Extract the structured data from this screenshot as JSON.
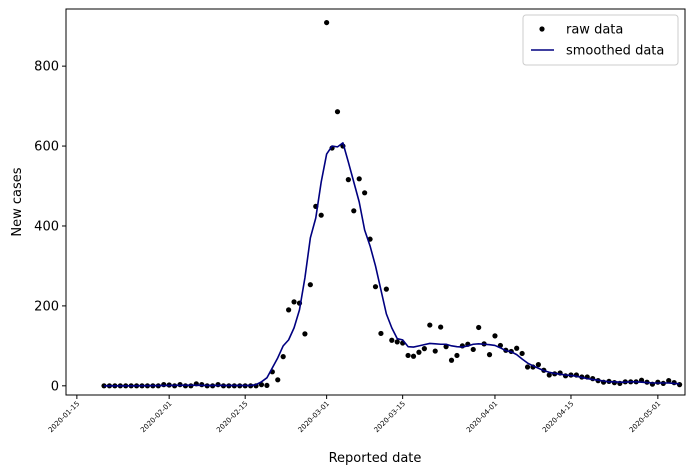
{
  "chart_data": {
    "type": "scatter",
    "xlabel": "Reported date",
    "ylabel": "New cases",
    "xlim": [
      "2020-01-13",
      "2020-05-06"
    ],
    "ylim": [
      -23,
      943
    ],
    "yticks": [
      0,
      200,
      400,
      600,
      800
    ],
    "xticks": [
      "2020-01-15",
      "2020-02-01",
      "2020-02-15",
      "2020-03-01",
      "2020-03-15",
      "2020-04-01",
      "2020-04-15",
      "2020-05-01"
    ],
    "grid": false,
    "legend": {
      "placement": "top-right",
      "entries": [
        "raw data",
        "smoothed data"
      ]
    },
    "colors": {
      "raw": "#000000",
      "smoothed": "#000080"
    },
    "series": [
      {
        "name": "raw data",
        "kind": "scatter",
        "points": [
          [
            "2020-01-20",
            0
          ],
          [
            "2020-01-21",
            0
          ],
          [
            "2020-01-22",
            0
          ],
          [
            "2020-01-23",
            0
          ],
          [
            "2020-01-24",
            0
          ],
          [
            "2020-01-25",
            0
          ],
          [
            "2020-01-26",
            0
          ],
          [
            "2020-01-27",
            0
          ],
          [
            "2020-01-28",
            0
          ],
          [
            "2020-01-29",
            0
          ],
          [
            "2020-01-30",
            0
          ],
          [
            "2020-01-31",
            3
          ],
          [
            "2020-02-01",
            2
          ],
          [
            "2020-02-02",
            0
          ],
          [
            "2020-02-03",
            3
          ],
          [
            "2020-02-04",
            0
          ],
          [
            "2020-02-05",
            0
          ],
          [
            "2020-02-06",
            5
          ],
          [
            "2020-02-07",
            3
          ],
          [
            "2020-02-08",
            0
          ],
          [
            "2020-02-09",
            0
          ],
          [
            "2020-02-10",
            3
          ],
          [
            "2020-02-11",
            0
          ],
          [
            "2020-02-12",
            0
          ],
          [
            "2020-02-13",
            0
          ],
          [
            "2020-02-14",
            0
          ],
          [
            "2020-02-15",
            0
          ],
          [
            "2020-02-16",
            0
          ],
          [
            "2020-02-17",
            0
          ],
          [
            "2020-02-18",
            3
          ],
          [
            "2020-02-19",
            1
          ],
          [
            "2020-02-20",
            35
          ],
          [
            "2020-02-21",
            15
          ],
          [
            "2020-02-22",
            73
          ],
          [
            "2020-02-23",
            190
          ],
          [
            "2020-02-24",
            210
          ],
          [
            "2020-02-25",
            207
          ],
          [
            "2020-02-26",
            130
          ],
          [
            "2020-02-27",
            253
          ],
          [
            "2020-02-28",
            449
          ],
          [
            "2020-02-29",
            427
          ],
          [
            "2020-03-01",
            909
          ],
          [
            "2020-03-02",
            595
          ],
          [
            "2020-03-03",
            686
          ],
          [
            "2020-03-04",
            600
          ],
          [
            "2020-03-05",
            516
          ],
          [
            "2020-03-06",
            438
          ],
          [
            "2020-03-07",
            518
          ],
          [
            "2020-03-08",
            483
          ],
          [
            "2020-03-09",
            367
          ],
          [
            "2020-03-10",
            248
          ],
          [
            "2020-03-11",
            131
          ],
          [
            "2020-03-12",
            242
          ],
          [
            "2020-03-13",
            114
          ],
          [
            "2020-03-14",
            110
          ],
          [
            "2020-03-15",
            107
          ],
          [
            "2020-03-16",
            76
          ],
          [
            "2020-03-17",
            74
          ],
          [
            "2020-03-18",
            84
          ],
          [
            "2020-03-19",
            93
          ],
          [
            "2020-03-20",
            152
          ],
          [
            "2020-03-21",
            87
          ],
          [
            "2020-03-22",
            147
          ],
          [
            "2020-03-23",
            98
          ],
          [
            "2020-03-24",
            64
          ],
          [
            "2020-03-25",
            76
          ],
          [
            "2020-03-26",
            100
          ],
          [
            "2020-03-27",
            104
          ],
          [
            "2020-03-28",
            91
          ],
          [
            "2020-03-29",
            146
          ],
          [
            "2020-03-30",
            105
          ],
          [
            "2020-03-31",
            78
          ],
          [
            "2020-04-01",
            125
          ],
          [
            "2020-04-02",
            101
          ],
          [
            "2020-04-03",
            89
          ],
          [
            "2020-04-04",
            86
          ],
          [
            "2020-04-05",
            94
          ],
          [
            "2020-04-06",
            81
          ],
          [
            "2020-04-07",
            47
          ],
          [
            "2020-04-08",
            47
          ],
          [
            "2020-04-09",
            53
          ],
          [
            "2020-04-10",
            39
          ],
          [
            "2020-04-11",
            27
          ],
          [
            "2020-04-12",
            30
          ],
          [
            "2020-04-13",
            32
          ],
          [
            "2020-04-14",
            25
          ],
          [
            "2020-04-15",
            27
          ],
          [
            "2020-04-16",
            27
          ],
          [
            "2020-04-17",
            22
          ],
          [
            "2020-04-18",
            22
          ],
          [
            "2020-04-19",
            18
          ],
          [
            "2020-04-20",
            13
          ],
          [
            "2020-04-21",
            9
          ],
          [
            "2020-04-22",
            11
          ],
          [
            "2020-04-23",
            8
          ],
          [
            "2020-04-24",
            6
          ],
          [
            "2020-04-25",
            10
          ],
          [
            "2020-04-26",
            10
          ],
          [
            "2020-04-27",
            10
          ],
          [
            "2020-04-28",
            14
          ],
          [
            "2020-04-29",
            9
          ],
          [
            "2020-04-30",
            4
          ],
          [
            "2020-05-01",
            9
          ],
          [
            "2020-05-02",
            6
          ],
          [
            "2020-05-03",
            13
          ],
          [
            "2020-05-04",
            8
          ],
          [
            "2020-05-05",
            3
          ]
        ]
      },
      {
        "name": "smoothed data",
        "kind": "line",
        "points": [
          [
            "2020-01-20",
            0
          ],
          [
            "2020-01-25",
            0
          ],
          [
            "2020-01-30",
            0.5
          ],
          [
            "2020-02-01",
            1
          ],
          [
            "2020-02-05",
            1.5
          ],
          [
            "2020-02-08",
            1
          ],
          [
            "2020-02-12",
            1
          ],
          [
            "2020-02-15",
            1
          ],
          [
            "2020-02-16",
            1
          ],
          [
            "2020-02-17",
            3
          ],
          [
            "2020-02-18",
            10
          ],
          [
            "2020-02-19",
            20
          ],
          [
            "2020-02-20",
            45
          ],
          [
            "2020-02-21",
            70
          ],
          [
            "2020-02-22",
            100
          ],
          [
            "2020-02-23",
            115
          ],
          [
            "2020-02-24",
            145
          ],
          [
            "2020-02-25",
            190
          ],
          [
            "2020-02-26",
            270
          ],
          [
            "2020-02-27",
            370
          ],
          [
            "2020-02-28",
            420
          ],
          [
            "2020-02-29",
            510
          ],
          [
            "2020-03-01",
            580
          ],
          [
            "2020-03-02",
            600
          ],
          [
            "2020-03-03",
            598
          ],
          [
            "2020-03-04",
            608
          ],
          [
            "2020-03-05",
            560
          ],
          [
            "2020-03-06",
            510
          ],
          [
            "2020-03-07",
            460
          ],
          [
            "2020-03-08",
            390
          ],
          [
            "2020-03-09",
            350
          ],
          [
            "2020-03-10",
            300
          ],
          [
            "2020-03-11",
            240
          ],
          [
            "2020-03-12",
            180
          ],
          [
            "2020-03-13",
            145
          ],
          [
            "2020-03-14",
            118
          ],
          [
            "2020-03-15",
            115
          ],
          [
            "2020-03-16",
            98
          ],
          [
            "2020-03-17",
            97
          ],
          [
            "2020-03-18",
            100
          ],
          [
            "2020-03-19",
            103
          ],
          [
            "2020-03-20",
            106
          ],
          [
            "2020-03-21",
            105
          ],
          [
            "2020-03-22",
            104
          ],
          [
            "2020-03-23",
            104
          ],
          [
            "2020-03-24",
            100
          ],
          [
            "2020-03-25",
            98
          ],
          [
            "2020-03-26",
            97
          ],
          [
            "2020-03-27",
            100
          ],
          [
            "2020-03-28",
            104
          ],
          [
            "2020-03-29",
            105
          ],
          [
            "2020-03-30",
            104
          ],
          [
            "2020-03-31",
            103
          ],
          [
            "2020-04-01",
            101
          ],
          [
            "2020-04-02",
            95
          ],
          [
            "2020-04-03",
            88
          ],
          [
            "2020-04-04",
            85
          ],
          [
            "2020-04-05",
            78
          ],
          [
            "2020-04-06",
            67
          ],
          [
            "2020-04-07",
            57
          ],
          [
            "2020-04-08",
            50
          ],
          [
            "2020-04-09",
            44
          ],
          [
            "2020-04-10",
            38
          ],
          [
            "2020-04-11",
            34
          ],
          [
            "2020-04-12",
            31
          ],
          [
            "2020-04-13",
            29
          ],
          [
            "2020-04-14",
            27
          ],
          [
            "2020-04-15",
            26
          ],
          [
            "2020-04-16",
            24
          ],
          [
            "2020-04-17",
            21
          ],
          [
            "2020-04-18",
            18
          ],
          [
            "2020-04-19",
            16
          ],
          [
            "2020-04-20",
            14
          ],
          [
            "2020-04-21",
            12
          ],
          [
            "2020-04-22",
            10
          ],
          [
            "2020-04-23",
            10
          ],
          [
            "2020-04-24",
            9
          ],
          [
            "2020-04-25",
            9
          ],
          [
            "2020-04-26",
            10
          ],
          [
            "2020-04-27",
            10
          ],
          [
            "2020-04-28",
            9
          ],
          [
            "2020-04-29",
            8
          ],
          [
            "2020-04-30",
            7
          ],
          [
            "2020-05-01",
            7
          ],
          [
            "2020-05-02",
            7
          ],
          [
            "2020-05-03",
            7
          ],
          [
            "2020-05-04",
            6
          ],
          [
            "2020-05-05",
            5
          ]
        ]
      }
    ]
  }
}
